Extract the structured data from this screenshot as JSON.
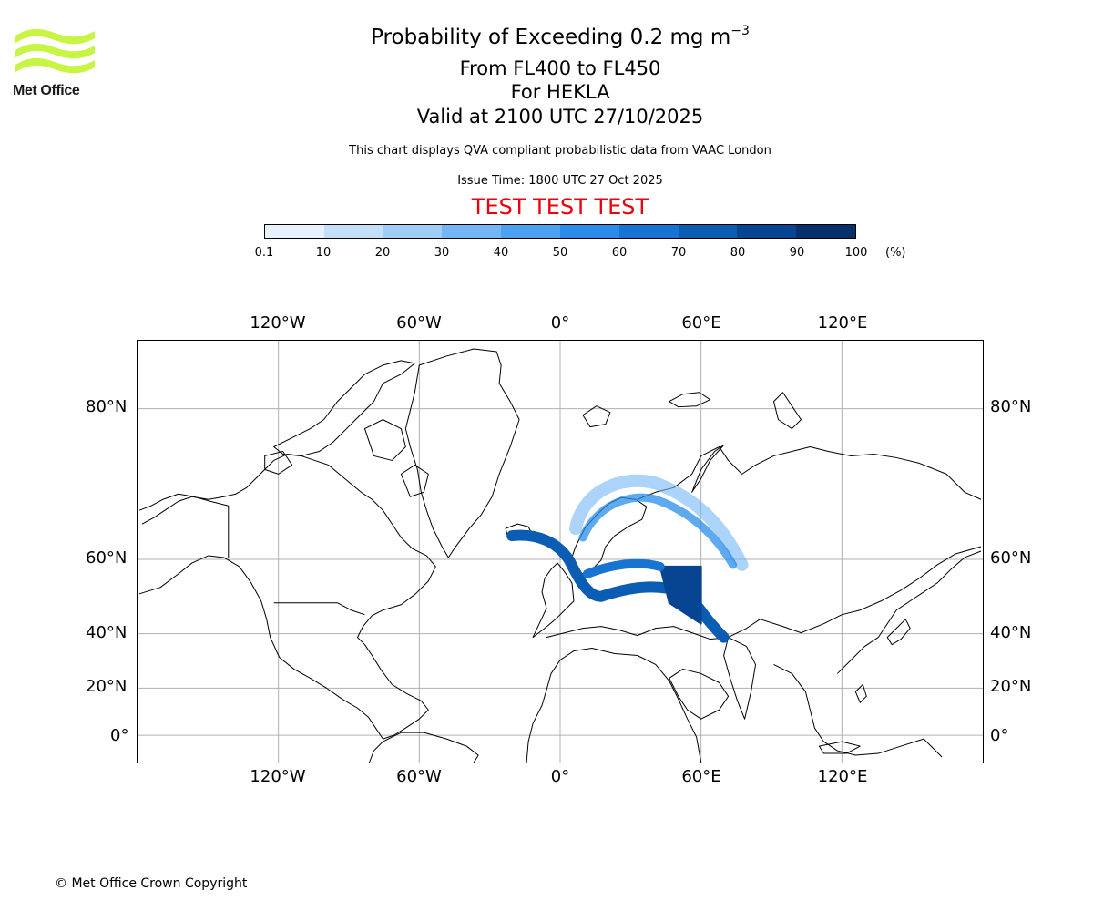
{
  "logo": {
    "name": "Met Office"
  },
  "title": {
    "main": "Probability of Exceeding 0.2 mg m",
    "superscript": "−3"
  },
  "subtitle_lines": [
    "From FL400 to FL450",
    "For HEKLA",
    "Valid at 2100 UTC 27/10/2025"
  ],
  "description": "This chart displays QVA compliant probabilistic data from VAAC London",
  "issue_time": "Issue Time: 1800 UTC 27 Oct 2025",
  "test_banner": "TEST TEST TEST",
  "colors": {
    "test_banner": "#e8040c"
  },
  "colorbar": {
    "ticks": [
      "0.1",
      "10",
      "20",
      "30",
      "40",
      "50",
      "60",
      "70",
      "80",
      "90",
      "100"
    ],
    "unit": "(%)",
    "colors": [
      "#e6f2fe",
      "#c3e0fb",
      "#9fcdf8",
      "#74b6f5",
      "#4ca1f1",
      "#2a8ce8",
      "#1774d2",
      "#0b5db3",
      "#074592",
      "#05306b"
    ]
  },
  "map": {
    "lon_labels": [
      "120°W",
      "60°W",
      "0°",
      "60°E",
      "120°E"
    ],
    "lat_labels": [
      "80°N",
      "60°N",
      "40°N",
      "20°N",
      "0°"
    ]
  },
  "copyright": "© Met Office Crown Copyright"
}
